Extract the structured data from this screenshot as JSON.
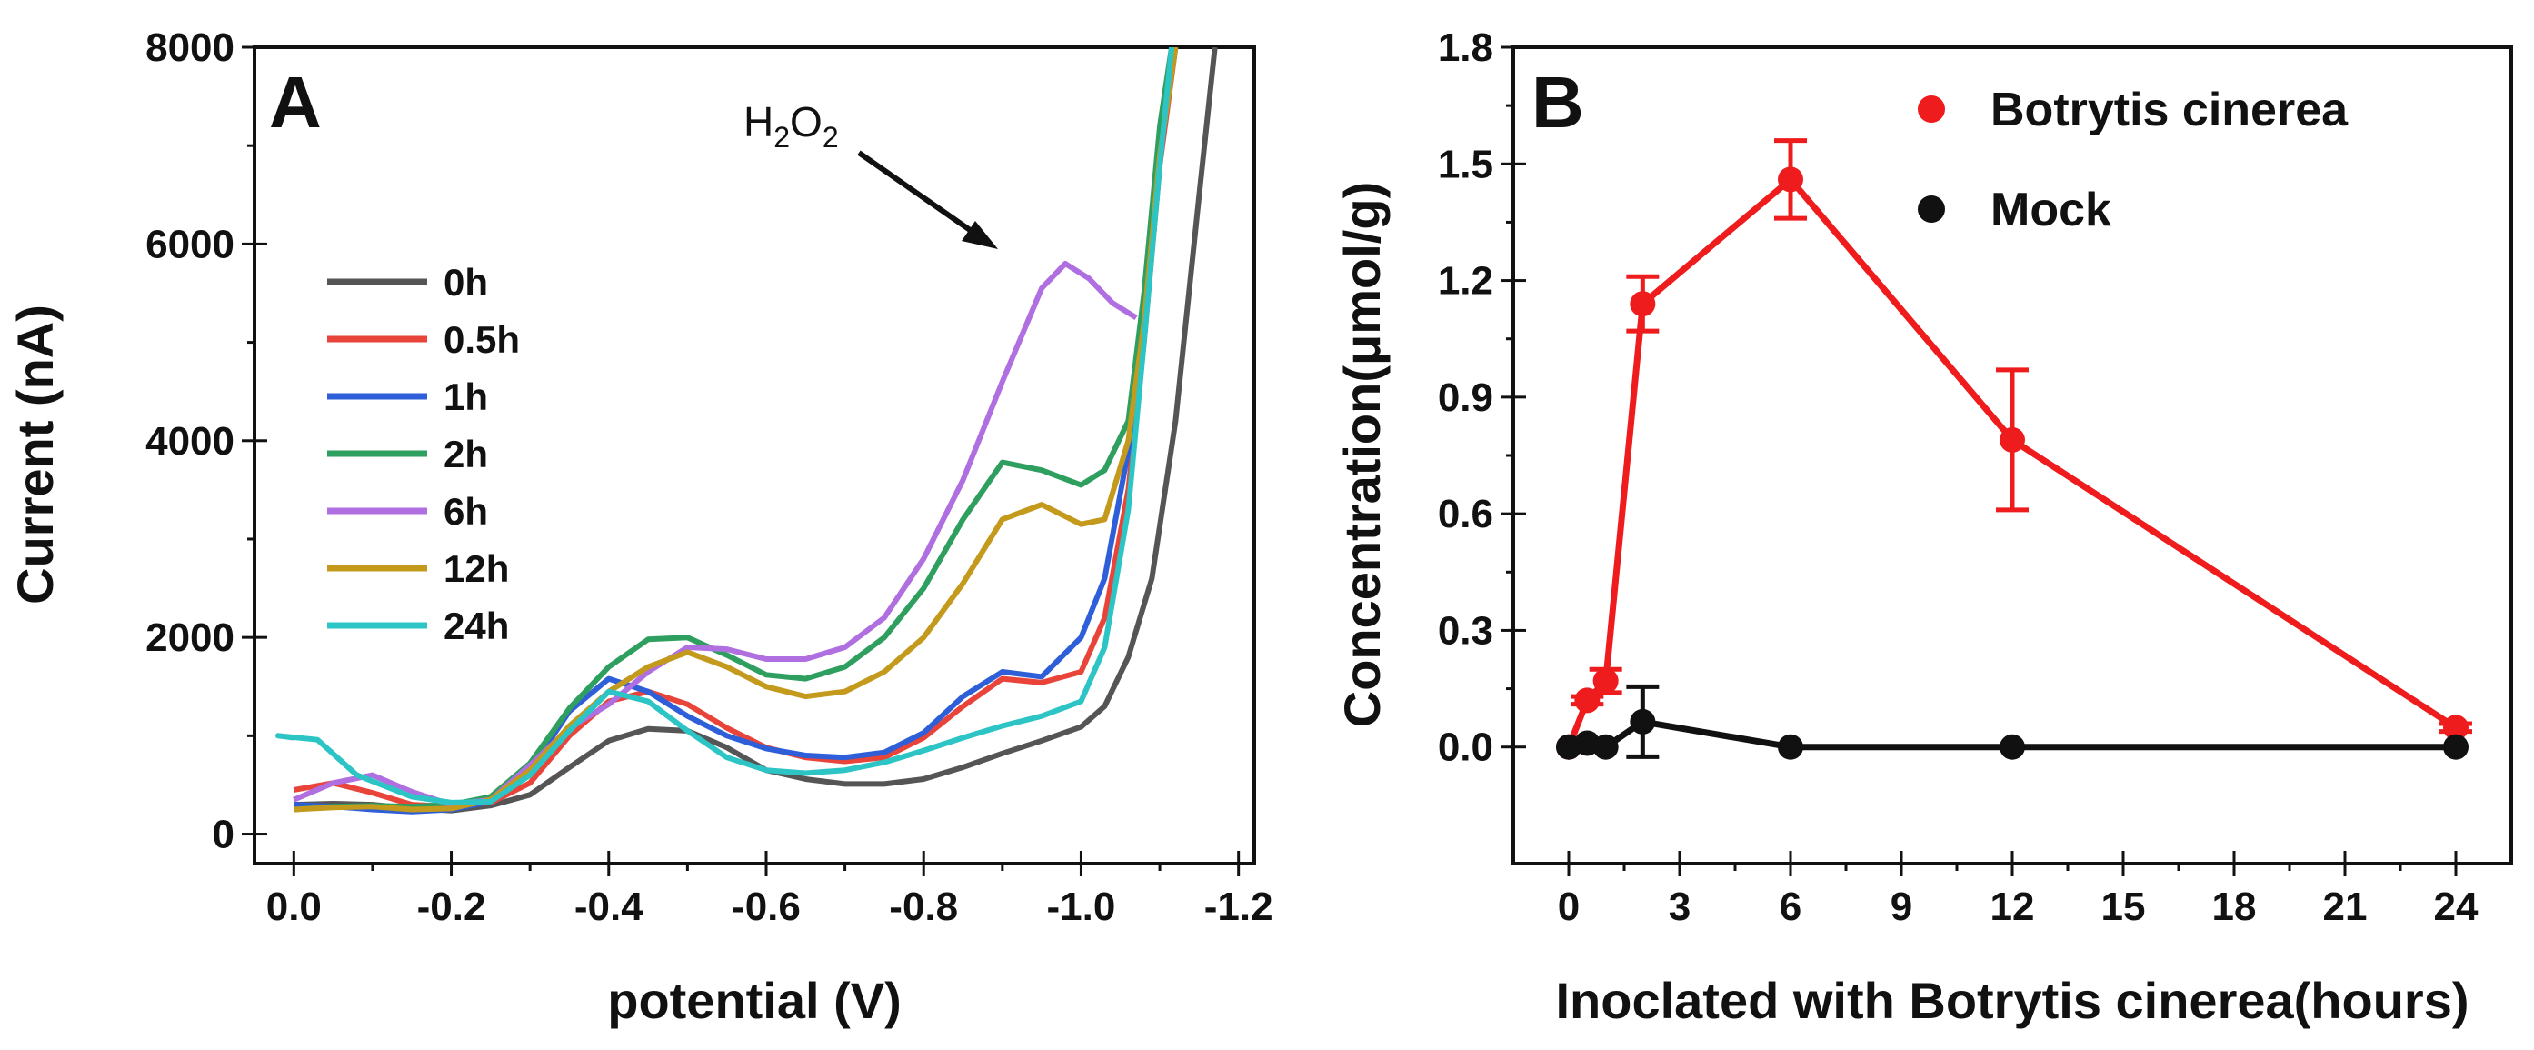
{
  "chart_data": [
    {
      "panel": "A",
      "type": "line",
      "xlabel": "potential (V)",
      "ylabel": "Current (nA)",
      "xlim": [
        0.05,
        -1.22
      ],
      "ylim": [
        -300,
        8000
      ],
      "xticks": [
        0.0,
        -0.2,
        -0.4,
        -0.6,
        -0.8,
        -1.0,
        -1.2
      ],
      "xtick_labels": [
        "0.0",
        "-0.2",
        "-0.4",
        "-0.6",
        "-0.8",
        "-1.0",
        "-1.2"
      ],
      "yticks": [
        0,
        2000,
        4000,
        6000,
        8000
      ],
      "ytick_labels": [
        "0",
        "2000",
        "4000",
        "6000",
        "8000"
      ],
      "annotation": {
        "label_main": "H",
        "sub1": "2",
        "mid": "O",
        "sub2": "2",
        "points_to": [
          -0.96,
          5850
        ]
      },
      "legend_placement": "center-left",
      "series": [
        {
          "name": "0h",
          "color": "#555555",
          "x": [
            0.0,
            -0.05,
            -0.1,
            -0.15,
            -0.2,
            -0.25,
            -0.3,
            -0.35,
            -0.4,
            -0.45,
            -0.5,
            -0.55,
            -0.6,
            -0.65,
            -0.7,
            -0.75,
            -0.8,
            -0.85,
            -0.9,
            -0.95,
            -1.0,
            -1.03,
            -1.06,
            -1.09,
            -1.12,
            -1.15,
            -1.17
          ],
          "y": [
            300,
            310,
            300,
            260,
            240,
            290,
            400,
            680,
            950,
            1070,
            1050,
            880,
            650,
            560,
            510,
            510,
            560,
            680,
            820,
            950,
            1090,
            1300,
            1800,
            2600,
            4200,
            6500,
            8000
          ]
        },
        {
          "name": "0.5h",
          "color": "#e8443a",
          "x": [
            0.0,
            -0.05,
            -0.1,
            -0.15,
            -0.2,
            -0.25,
            -0.3,
            -0.35,
            -0.4,
            -0.45,
            -0.5,
            -0.55,
            -0.6,
            -0.65,
            -0.7,
            -0.75,
            -0.8,
            -0.85,
            -0.9,
            -0.95,
            -1.0,
            -1.03,
            -1.06,
            -1.08,
            -1.1,
            -1.12
          ],
          "y": [
            450,
            520,
            420,
            300,
            280,
            320,
            520,
            1000,
            1350,
            1450,
            1320,
            1080,
            880,
            780,
            740,
            780,
            980,
            1300,
            1580,
            1540,
            1650,
            2200,
            3500,
            5000,
            6800,
            8000
          ]
        },
        {
          "name": "1h",
          "color": "#2e5fd8",
          "x": [
            0.0,
            -0.05,
            -0.1,
            -0.15,
            -0.2,
            -0.25,
            -0.3,
            -0.35,
            -0.4,
            -0.45,
            -0.5,
            -0.55,
            -0.6,
            -0.65,
            -0.7,
            -0.75,
            -0.8,
            -0.85,
            -0.9,
            -0.95,
            -1.0,
            -1.03,
            -1.06,
            -1.08,
            -1.1,
            -1.12
          ],
          "y": [
            300,
            280,
            250,
            230,
            250,
            330,
            650,
            1250,
            1580,
            1450,
            1200,
            1000,
            870,
            800,
            780,
            830,
            1030,
            1400,
            1650,
            1600,
            2000,
            2600,
            3900,
            5200,
            6900,
            8000
          ]
        },
        {
          "name": "2h",
          "color": "#2e9f5f",
          "x": [
            0.0,
            -0.05,
            -0.1,
            -0.15,
            -0.2,
            -0.25,
            -0.3,
            -0.35,
            -0.4,
            -0.45,
            -0.5,
            -0.55,
            -0.6,
            -0.65,
            -0.7,
            -0.75,
            -0.8,
            -0.85,
            -0.9,
            -0.95,
            -1.0,
            -1.03,
            -1.06,
            -1.08,
            -1.1,
            -1.115
          ],
          "y": [
            250,
            280,
            290,
            280,
            300,
            380,
            720,
            1280,
            1700,
            1980,
            2000,
            1820,
            1620,
            1580,
            1700,
            2000,
            2500,
            3200,
            3780,
            3700,
            3550,
            3700,
            4200,
            5500,
            7200,
            8000
          ]
        },
        {
          "name": "6h",
          "color": "#b06fe0",
          "x": [
            0.0,
            -0.05,
            -0.1,
            -0.15,
            -0.2,
            -0.25,
            -0.3,
            -0.35,
            -0.4,
            -0.45,
            -0.5,
            -0.55,
            -0.6,
            -0.65,
            -0.7,
            -0.75,
            -0.8,
            -0.85,
            -0.9,
            -0.95,
            -0.98,
            -1.01,
            -1.04,
            -1.07
          ],
          "y": [
            350,
            520,
            600,
            430,
            300,
            350,
            700,
            1080,
            1320,
            1650,
            1900,
            1880,
            1780,
            1780,
            1900,
            2200,
            2800,
            3600,
            4600,
            5550,
            5800,
            5650,
            5400,
            5250
          ]
        },
        {
          "name": "12h",
          "color": "#c49a1c",
          "x": [
            0.0,
            -0.05,
            -0.1,
            -0.15,
            -0.2,
            -0.25,
            -0.3,
            -0.35,
            -0.4,
            -0.45,
            -0.5,
            -0.55,
            -0.6,
            -0.65,
            -0.7,
            -0.75,
            -0.8,
            -0.85,
            -0.9,
            -0.95,
            -1.0,
            -1.03,
            -1.06,
            -1.08,
            -1.1,
            -1.12
          ],
          "y": [
            250,
            270,
            280,
            250,
            260,
            350,
            650,
            1100,
            1450,
            1700,
            1850,
            1700,
            1500,
            1400,
            1450,
            1650,
            2000,
            2550,
            3200,
            3350,
            3150,
            3200,
            4000,
            5200,
            6900,
            8000
          ]
        },
        {
          "name": "24h",
          "color": "#2cc4c4",
          "x": [
            0.0,
            0.02,
            -0.03,
            -0.08,
            -0.15,
            -0.2,
            -0.25,
            -0.3,
            -0.35,
            -0.4,
            -0.45,
            -0.5,
            -0.55,
            -0.6,
            -0.65,
            -0.7,
            -0.75,
            -0.8,
            -0.85,
            -0.9,
            -0.95,
            -1.0,
            -1.03,
            -1.06,
            -1.08,
            -1.1,
            -1.115
          ],
          "y": [
            980,
            1000,
            960,
            600,
            380,
            320,
            330,
            600,
            1050,
            1450,
            1350,
            1050,
            780,
            650,
            620,
            650,
            730,
            850,
            980,
            1100,
            1200,
            1350,
            1900,
            3300,
            5000,
            6800,
            8000
          ]
        }
      ]
    },
    {
      "panel": "B",
      "type": "line",
      "xlabel": "Inoclated with Botrytis cinerea(hours)",
      "ylabel": "Concentration(μmol/g)",
      "xlim": [
        -1.5,
        25.5
      ],
      "ylim": [
        -0.3,
        1.8
      ],
      "xticks": [
        0,
        3,
        6,
        9,
        12,
        15,
        18,
        21,
        24
      ],
      "xtick_labels": [
        "0",
        "3",
        "6",
        "9",
        "12",
        "15",
        "18",
        "21",
        "24"
      ],
      "yticks": [
        0.0,
        0.3,
        0.6,
        0.9,
        1.2,
        1.5,
        1.8
      ],
      "ytick_labels": [
        "0.0",
        "0.3",
        "0.6",
        "0.9",
        "1.2",
        "1.5",
        "1.8"
      ],
      "legend_placement": "top-right",
      "series": [
        {
          "name": "Botrytis cinerea",
          "color": "#ee1c1c",
          "x": [
            0,
            0.5,
            1,
            2,
            6,
            12,
            24
          ],
          "y": [
            0.0,
            0.12,
            0.17,
            1.14,
            1.46,
            0.79,
            0.05
          ],
          "err": [
            0.0,
            0.01,
            0.03,
            0.07,
            0.1,
            0.18,
            0.01
          ]
        },
        {
          "name": "Mock",
          "color": "#111111",
          "x": [
            0,
            0.5,
            1,
            2,
            6,
            12,
            24
          ],
          "y": [
            0.0,
            0.01,
            0.0,
            0.065,
            0.0,
            0.0,
            0.0
          ],
          "err": [
            0.0,
            0.0,
            0.0,
            0.09,
            0.0,
            0.0,
            0.0
          ]
        }
      ]
    }
  ]
}
